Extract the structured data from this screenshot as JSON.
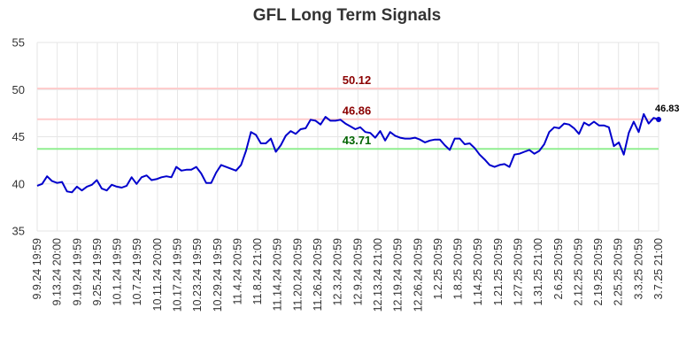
{
  "chart_data": {
    "type": "line",
    "title": "GFL Long Term Signals",
    "ylim": [
      35,
      55
    ],
    "yticks": [
      "35",
      "40",
      "45",
      "50",
      "55"
    ],
    "grid": true,
    "xtick_labels": [
      "9.9.24 19:59",
      "9.13.24 20:00",
      "9.19.24 19:59",
      "9.25.24 19:59",
      "10.1.24 19:59",
      "10.7.24 19:59",
      "10.11.24 20:00",
      "10.17.24 19:59",
      "10.23.24 19:59",
      "10.29.24 19:59",
      "11.4.24 20:59",
      "11.8.24 21:00",
      "11.14.24 20:59",
      "11.20.24 20:59",
      "11.26.24 20:59",
      "12.3.24 20:59",
      "12.9.24 20:59",
      "12.13.24 21:00",
      "12.19.24 20:59",
      "12.26.24 20:59",
      "1.2.25 20:59",
      "1.8.25 20:59",
      "1.14.25 20:59",
      "1.21.25 20:59",
      "1.27.25 20:59",
      "1.31.25 21:00",
      "2.6.25 20:59",
      "2.12.25 20:59",
      "2.19.25 20:59",
      "2.25.25 20:59",
      "3.3.25 20:59",
      "3.7.25 21:00"
    ],
    "series": [
      {
        "color": "#0000cc",
        "values": [
          39.8,
          40.0,
          40.8,
          40.3,
          40.1,
          40.2,
          39.2,
          39.1,
          39.7,
          39.3,
          39.7,
          39.9,
          40.4,
          39.5,
          39.3,
          39.9,
          39.7,
          39.6,
          39.8,
          40.7,
          40.0,
          40.7,
          40.9,
          40.4,
          40.5,
          40.7,
          40.8,
          40.7,
          41.8,
          41.4,
          41.5,
          41.5,
          41.8,
          41.1,
          40.1,
          40.1,
          41.2,
          42.0,
          41.8,
          41.6,
          41.4,
          42.0,
          43.5,
          45.5,
          45.2,
          44.3,
          44.3,
          44.8,
          43.4,
          44.1,
          45.1,
          45.6,
          45.3,
          45.8,
          45.9,
          46.8,
          46.7,
          46.3,
          47.1,
          46.7,
          46.7,
          46.8,
          46.4,
          46.1,
          45.8,
          46.0,
          45.5,
          45.4,
          44.9,
          45.6,
          44.6,
          45.5,
          45.1,
          44.9,
          44.8,
          44.8,
          44.9,
          44.7,
          44.4,
          44.6,
          44.7,
          44.7,
          44.1,
          43.6,
          44.8,
          44.8,
          44.2,
          44.3,
          43.8,
          43.1,
          42.6,
          42.0,
          41.8,
          42.0,
          42.1,
          41.8,
          43.1,
          43.2,
          43.4,
          43.6,
          43.2,
          43.5,
          44.2,
          45.5,
          46.0,
          45.9,
          46.4,
          46.3,
          45.9,
          45.3,
          46.5,
          46.2,
          46.6,
          46.2,
          46.2,
          46.0,
          44.0,
          44.4,
          43.1,
          45.4,
          46.6,
          45.5,
          47.4,
          46.4,
          47.0,
          46.83
        ]
      }
    ],
    "reference_lines": [
      {
        "value": 50.12,
        "label": "50.12",
        "line_color": "#ffcccc",
        "label_color": "#8b0000"
      },
      {
        "value": 46.86,
        "label": "46.86",
        "line_color": "#ffcccc",
        "label_color": "#8b0000"
      },
      {
        "value": 43.71,
        "label": "43.71",
        "line_color": "#90ee90",
        "label_color": "#006400"
      }
    ],
    "last_value_label": "46.83"
  }
}
